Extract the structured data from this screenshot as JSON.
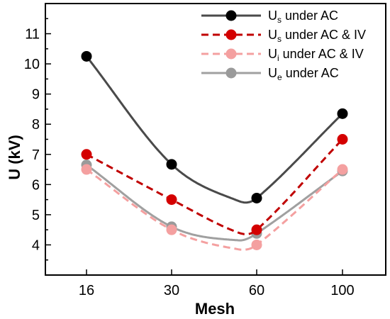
{
  "chart_data": {
    "type": "line",
    "xlabel": "Mesh",
    "ylabel": "U (kV)",
    "categories": [
      "16",
      "30",
      "60",
      "100"
    ],
    "ylim": [
      3,
      12
    ],
    "yticks": [
      4,
      5,
      6,
      7,
      8,
      9,
      10,
      11
    ],
    "grid": false,
    "legend_position": "top-right",
    "series": [
      {
        "name": "U_s under AC",
        "legend_main": "U",
        "legend_sub": "s",
        "legend_rest": " under AC",
        "values": [
          10.25,
          6.67,
          5.55,
          8.35
        ],
        "color": "#4a4a4a",
        "marker": "#000000",
        "dash": "solid",
        "curve_min": 5.45
      },
      {
        "name": "U_s under AC & IV",
        "legend_main": "U",
        "legend_sub": "s",
        "legend_rest": " under AC & IV",
        "values": [
          7.0,
          5.5,
          4.5,
          7.5
        ],
        "color": "#c00000",
        "marker": "#d40000",
        "dash": "dashed",
        "curve_min": 4.4
      },
      {
        "name": "U_i under AC & IV",
        "legend_main": "U",
        "legend_sub": "i",
        "legend_rest": " under AC & IV",
        "values": [
          6.5,
          4.5,
          4.0,
          6.5
        ],
        "color": "#f4a0a0",
        "marker": "#f4a0a0",
        "dash": "dashed",
        "curve_min": 3.85
      },
      {
        "name": "U_e under AC",
        "legend_main": "U",
        "legend_sub": "e",
        "legend_rest": " under AC",
        "values": [
          6.65,
          4.6,
          4.38,
          6.45
        ],
        "color": "#a0a0a0",
        "marker": "#9a9a9a",
        "dash": "solid",
        "curve_min": 4.15
      }
    ]
  }
}
